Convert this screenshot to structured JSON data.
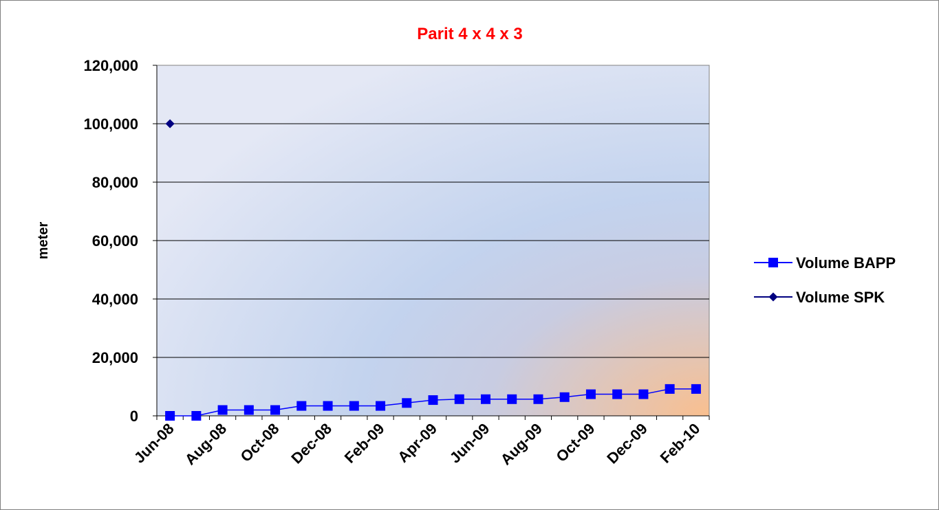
{
  "chart_data": {
    "type": "line",
    "title": "Parit 4 x 4 x 3",
    "title_color": "#ff0000",
    "xlabel": "",
    "ylabel": "meter",
    "ylim": [
      0,
      120000
    ],
    "yticks": [
      0,
      20000,
      40000,
      60000,
      80000,
      100000,
      120000
    ],
    "ytick_labels": [
      "0",
      "20,000",
      "40,000",
      "60,000",
      "80,000",
      "100,000",
      "120,000"
    ],
    "categories": [
      "Jun-08",
      "Jul-08",
      "Aug-08",
      "Sep-08",
      "Oct-08",
      "Nov-08",
      "Dec-08",
      "Jan-09",
      "Feb-09",
      "Mar-09",
      "Apr-09",
      "May-09",
      "Jun-09",
      "Jul-09",
      "Aug-09",
      "Sep-09",
      "Oct-09",
      "Nov-09",
      "Dec-09",
      "Jan-10",
      "Feb-10"
    ],
    "xtick_labels": [
      "Jun-08",
      "Aug-08",
      "Oct-08",
      "Dec-08",
      "Feb-09",
      "Apr-09",
      "Jun-09",
      "Aug-09",
      "Oct-09",
      "Dec-09",
      "Feb-10"
    ],
    "grid": "horizontal",
    "legend_position": "right",
    "series": [
      {
        "name": "Volume BAPP",
        "marker": "square",
        "color": "#0000ff",
        "values": [
          0,
          0,
          2000,
          2000,
          2000,
          3400,
          3400,
          3400,
          3400,
          4400,
          5400,
          5700,
          5700,
          5700,
          5700,
          6400,
          7400,
          7400,
          7400,
          9200,
          9200
        ]
      },
      {
        "name": "Volume SPK",
        "marker": "diamond",
        "color": "#000080",
        "values": [
          100000,
          null,
          null,
          null,
          null,
          null,
          null,
          null,
          null,
          null,
          null,
          null,
          null,
          null,
          null,
          null,
          null,
          null,
          null,
          null,
          null
        ]
      }
    ]
  }
}
